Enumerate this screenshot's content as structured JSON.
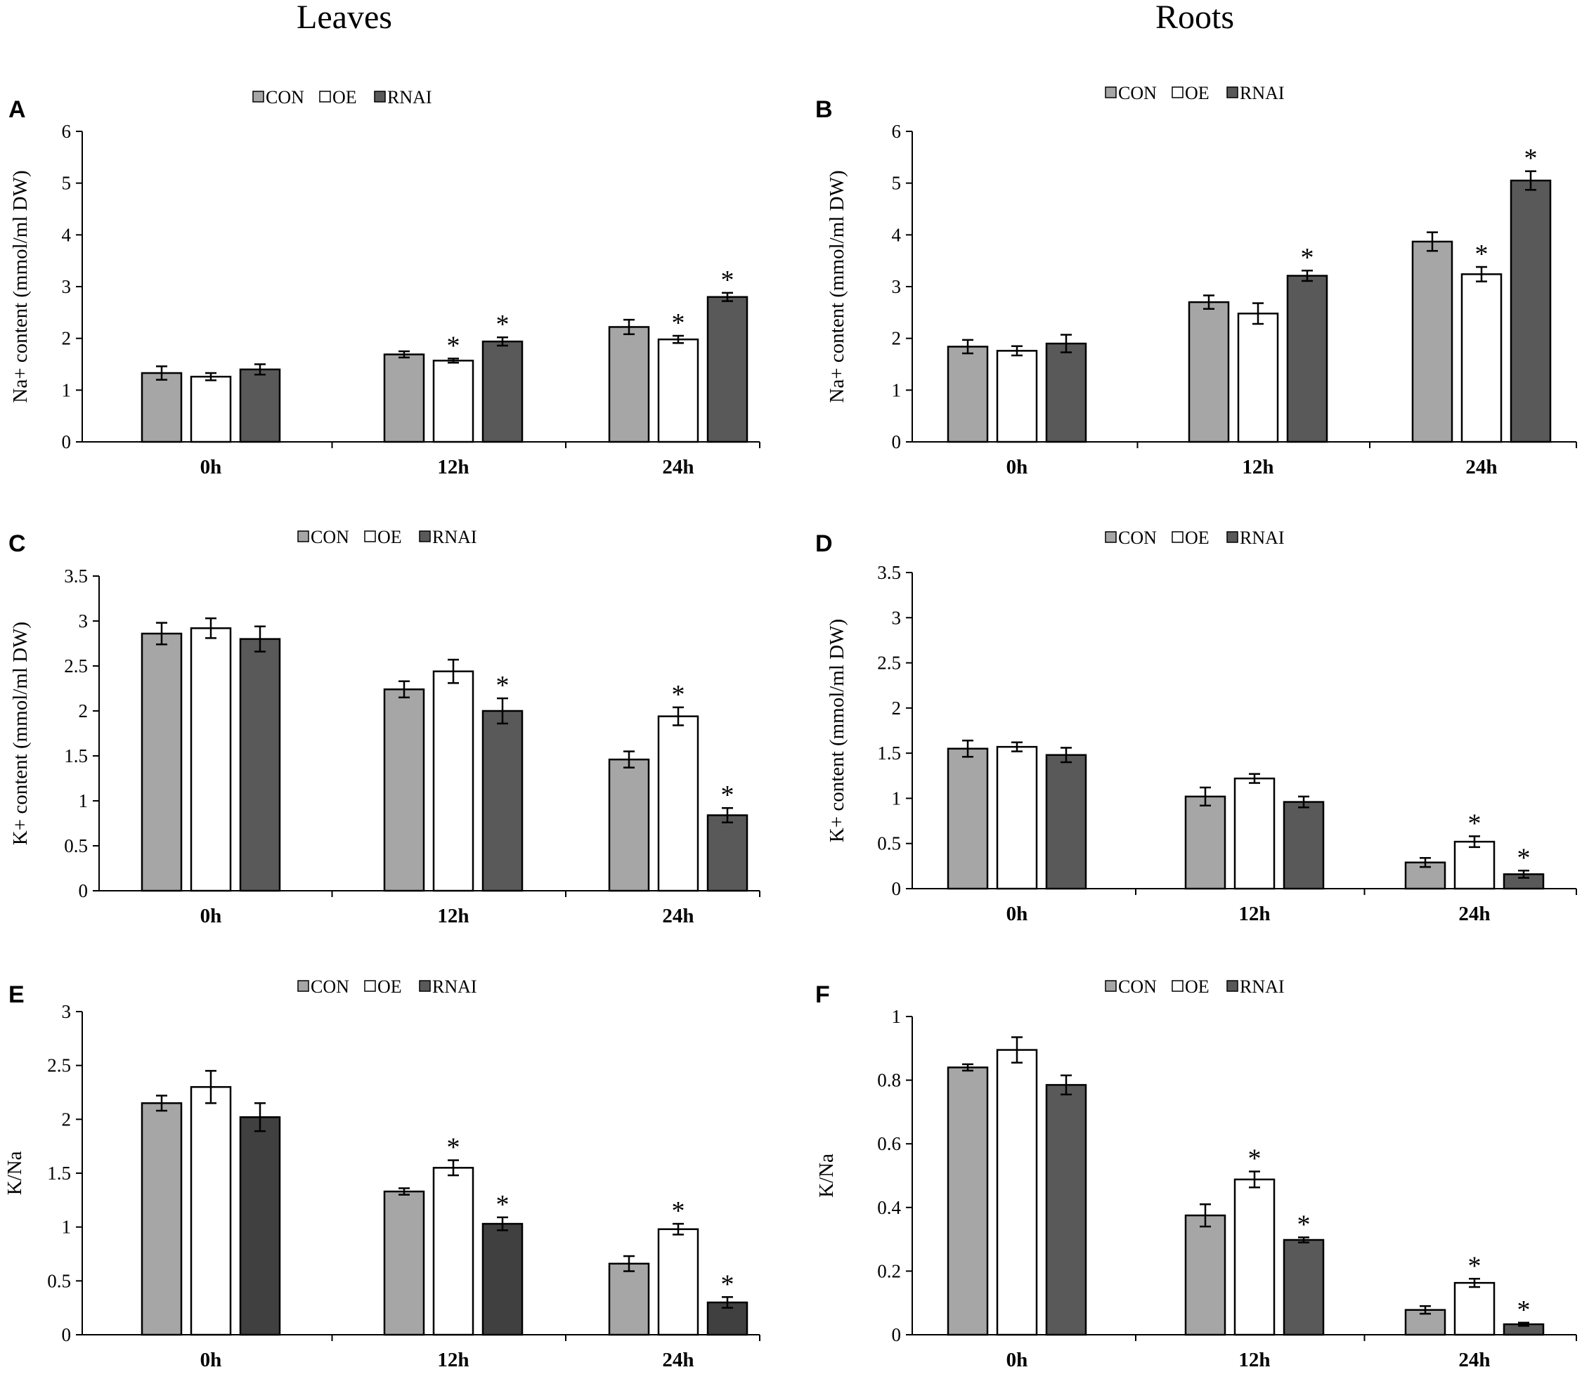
{
  "column_titles": [
    "Leaves",
    "Roots"
  ],
  "legend": {
    "labels": [
      "CON",
      "OE",
      "RNAI"
    ]
  },
  "colors": {
    "CON": "#a6a6a6",
    "OE": "#ffffff",
    "RNAI": "#595959",
    "RNAI_dark": "#404040",
    "axis": "#000000"
  },
  "chart_data": [
    {
      "panel": "A",
      "type": "bar",
      "column": "Leaves",
      "categories": [
        "0h",
        "12h",
        "24h"
      ],
      "ylabel": "Na+ content (mmol/ml  DW)",
      "ylim": [
        0,
        6
      ],
      "yticks": [
        "0",
        "1",
        "2",
        "3",
        "4",
        "5",
        "6"
      ],
      "ytick_values": [
        0,
        1,
        2,
        3,
        4,
        5,
        6
      ],
      "legend_position": "top-center",
      "series": [
        {
          "name": "CON",
          "values": [
            1.33,
            1.69,
            2.22
          ],
          "errors": [
            0.13,
            0.06,
            0.14
          ],
          "significant": [
            false,
            false,
            false
          ]
        },
        {
          "name": "OE",
          "values": [
            1.26,
            1.57,
            1.98
          ],
          "errors": [
            0.07,
            0.04,
            0.07
          ],
          "significant": [
            false,
            true,
            true
          ]
        },
        {
          "name": "RNAI",
          "values": [
            1.4,
            1.94,
            2.8
          ],
          "errors": [
            0.1,
            0.08,
            0.08
          ],
          "significant": [
            false,
            true,
            true
          ]
        }
      ]
    },
    {
      "panel": "B",
      "type": "bar",
      "column": "Roots",
      "categories": [
        "0h",
        "12h",
        "24h"
      ],
      "ylabel": "Na+ content (mmol/ml  DW)",
      "ylim": [
        0,
        6
      ],
      "yticks": [
        "0",
        "1",
        "2",
        "3",
        "4",
        "5",
        "6"
      ],
      "ytick_values": [
        0,
        1,
        2,
        3,
        4,
        5,
        6
      ],
      "legend_position": "top-center",
      "series": [
        {
          "name": "CON",
          "values": [
            1.84,
            2.7,
            3.87
          ],
          "errors": [
            0.13,
            0.13,
            0.18
          ],
          "significant": [
            false,
            false,
            false
          ]
        },
        {
          "name": "OE",
          "values": [
            1.76,
            2.48,
            3.24
          ],
          "errors": [
            0.09,
            0.2,
            0.14
          ],
          "significant": [
            false,
            false,
            true
          ]
        },
        {
          "name": "RNAI",
          "values": [
            1.9,
            3.21,
            5.05
          ],
          "errors": [
            0.17,
            0.1,
            0.18
          ],
          "significant": [
            false,
            true,
            true
          ]
        }
      ]
    },
    {
      "panel": "C",
      "type": "bar",
      "column": "Leaves",
      "categories": [
        "0h",
        "12h",
        "24h"
      ],
      "ylabel": "K+ content (mmol/ml  DW)",
      "ylim": [
        0,
        3.5
      ],
      "yticks": [
        "0",
        "0.5",
        "1",
        "1.5",
        "2",
        "2.5",
        "3",
        "3.5"
      ],
      "ytick_values": [
        0,
        0.5,
        1,
        1.5,
        2,
        2.5,
        3,
        3.5
      ],
      "legend_position": "top-center",
      "series": [
        {
          "name": "CON",
          "values": [
            2.86,
            2.24,
            1.46
          ],
          "errors": [
            0.12,
            0.09,
            0.09
          ],
          "significant": [
            false,
            false,
            false
          ]
        },
        {
          "name": "OE",
          "values": [
            2.92,
            2.44,
            1.94
          ],
          "errors": [
            0.11,
            0.13,
            0.1
          ],
          "significant": [
            false,
            false,
            true
          ]
        },
        {
          "name": "RNAI",
          "values": [
            2.8,
            2.0,
            0.84
          ],
          "errors": [
            0.14,
            0.14,
            0.08
          ],
          "significant": [
            false,
            true,
            true
          ]
        }
      ]
    },
    {
      "panel": "D",
      "type": "bar",
      "column": "Roots",
      "categories": [
        "0h",
        "12h",
        "24h"
      ],
      "ylabel": "K+ content (mmol/ml  DW)",
      "ylim": [
        0,
        3.5
      ],
      "yticks": [
        "0",
        "0.5",
        "1",
        "1.5",
        "2",
        "2.5",
        "3",
        "3.5"
      ],
      "ytick_values": [
        0,
        0.5,
        1,
        1.5,
        2,
        2.5,
        3,
        3.5
      ],
      "legend_position": "top-center",
      "series": [
        {
          "name": "CON",
          "values": [
            1.55,
            1.02,
            0.29
          ],
          "errors": [
            0.09,
            0.1,
            0.05
          ],
          "significant": [
            false,
            false,
            false
          ]
        },
        {
          "name": "OE",
          "values": [
            1.57,
            1.22,
            0.52
          ],
          "errors": [
            0.05,
            0.05,
            0.06
          ],
          "significant": [
            false,
            false,
            true
          ]
        },
        {
          "name": "RNAI",
          "values": [
            1.48,
            0.96,
            0.16
          ],
          "errors": [
            0.08,
            0.06,
            0.04
          ],
          "significant": [
            false,
            false,
            true
          ]
        }
      ]
    },
    {
      "panel": "E",
      "type": "bar",
      "column": "Leaves",
      "categories": [
        "0h",
        "12h",
        "24h"
      ],
      "ylabel": "K/Na",
      "ylim": [
        0,
        3
      ],
      "yticks": [
        "0",
        "0.5",
        "1",
        "1.5",
        "2",
        "2.5",
        "3"
      ],
      "ytick_values": [
        0,
        0.5,
        1,
        1.5,
        2,
        2.5,
        3
      ],
      "legend_position": "top-center",
      "series": [
        {
          "name": "CON",
          "values": [
            2.15,
            1.33,
            0.66
          ],
          "errors": [
            0.07,
            0.03,
            0.07
          ],
          "significant": [
            false,
            false,
            false
          ]
        },
        {
          "name": "OE",
          "values": [
            2.3,
            1.55,
            0.98
          ],
          "errors": [
            0.15,
            0.07,
            0.05
          ],
          "significant": [
            false,
            true,
            true
          ]
        },
        {
          "name": "RNAI",
          "values": [
            2.02,
            1.03,
            0.3
          ],
          "errors": [
            0.13,
            0.06,
            0.05
          ],
          "significant": [
            false,
            true,
            true
          ]
        }
      ]
    },
    {
      "panel": "F",
      "type": "bar",
      "column": "Roots",
      "categories": [
        "0h",
        "12h",
        "24h"
      ],
      "ylabel": "K/Na",
      "ylim": [
        0,
        1
      ],
      "yticks": [
        "0",
        "0.2",
        "0.4",
        "0.6",
        "0.8",
        "1"
      ],
      "ytick_values": [
        0,
        0.2,
        0.4,
        0.6,
        0.8,
        1
      ],
      "legend_position": "top-center",
      "series": [
        {
          "name": "CON",
          "values": [
            0.84,
            0.375,
            0.078
          ],
          "errors": [
            0.01,
            0.035,
            0.012
          ],
          "significant": [
            false,
            false,
            false
          ]
        },
        {
          "name": "OE",
          "values": [
            0.895,
            0.488,
            0.163
          ],
          "errors": [
            0.04,
            0.025,
            0.013
          ],
          "significant": [
            false,
            true,
            true
          ]
        },
        {
          "name": "RNAI",
          "values": [
            0.785,
            0.298,
            0.033
          ],
          "errors": [
            0.03,
            0.008,
            0.005
          ],
          "significant": [
            false,
            true,
            true
          ]
        }
      ]
    }
  ]
}
